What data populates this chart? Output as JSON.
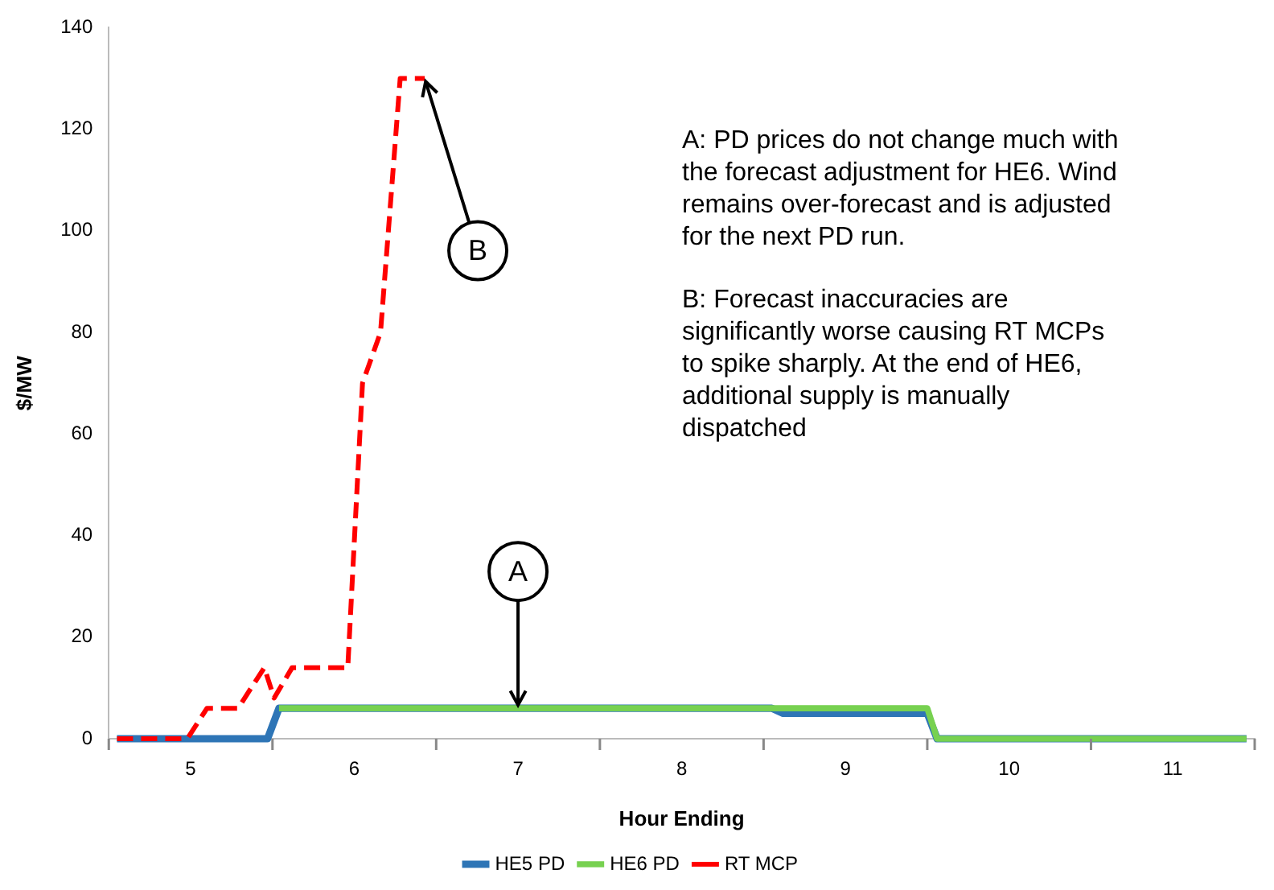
{
  "chart_data": {
    "type": "line",
    "xlabel": "Hour Ending",
    "ylabel": "$/MW",
    "xlim": [
      4.5,
      11.5
    ],
    "xticks": [
      {
        "value": 4.5,
        "label": null
      },
      5,
      {
        "value": 5.5,
        "label": null
      },
      6,
      {
        "value": 6.5,
        "label": null
      },
      7,
      {
        "value": 7.5,
        "label": null
      },
      8,
      {
        "value": 8.5,
        "label": null
      },
      9,
      {
        "value": 9.5,
        "label": null
      },
      10,
      {
        "value": 10.5,
        "label": null
      },
      11,
      {
        "value": 11.5,
        "label": null
      }
    ],
    "ylim": [
      0,
      140
    ],
    "yticks": [
      0,
      20,
      40,
      60,
      80,
      100,
      120,
      140
    ],
    "grid": false,
    "legend": "bottom",
    "marker": "none",
    "series": [
      {
        "name": "HE5 PD",
        "color": "#2e75b6",
        "line_style": "solid",
        "x": [
          4.55,
          5.47,
          5.54,
          8.55,
          8.62,
          9.5,
          9.56,
          11.45
        ],
        "values": [
          0,
          0,
          6,
          6,
          5,
          5,
          0,
          0
        ]
      },
      {
        "name": "HE6 PD",
        "color": "#77d150",
        "line_style": "solid",
        "x": [
          5.54,
          8.55,
          9.5,
          9.56,
          11.45
        ],
        "values": [
          6,
          6,
          6,
          0,
          0
        ]
      },
      {
        "name": "RT MCP",
        "color": "#ff0000",
        "line_style": "dashed",
        "x": [
          4.55,
          4.98,
          5.1,
          5.29,
          5.45,
          5.51,
          5.62,
          5.96,
          6.05,
          6.16,
          6.28,
          6.43
        ],
        "values": [
          0,
          0,
          6,
          6,
          14,
          8,
          14,
          14,
          70,
          80,
          130,
          130
        ]
      }
    ],
    "annotations": [
      {
        "text": "A",
        "x": 7,
        "y": 6
      },
      {
        "text": "B",
        "x": 6.43,
        "y": 130
      },
      "A: PD prices do not change much with the forecast adjustment for HE6. Wind remains over-forecast and is adjusted for the next PD run.",
      "B: Forecast inaccuracies are significantly worse causing RT MCPs to spike sharply. At the end of HE6, additional supply is manually dispatched"
    ]
  }
}
